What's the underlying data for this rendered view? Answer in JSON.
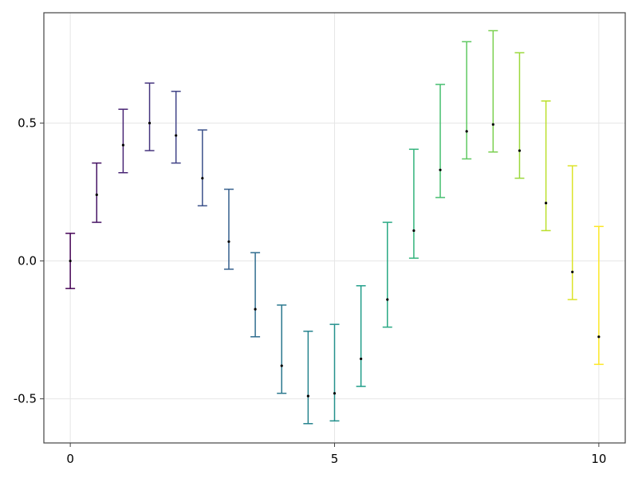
{
  "chart_data": {
    "type": "scatter",
    "title": "",
    "xlabel": "",
    "ylabel": "",
    "xlim": [
      -0.5,
      10.5
    ],
    "ylim": [
      -0.66,
      0.9
    ],
    "grid": true,
    "legend": "none",
    "x_ticks": [
      0,
      5,
      10
    ],
    "x_tick_labels": [
      "0",
      "5",
      "10"
    ],
    "y_ticks": [
      -0.5,
      0.0,
      0.5
    ],
    "y_tick_labels": [
      "-0.5",
      "0.0",
      "0.5"
    ],
    "colormap": "viridis",
    "point_color": "#000000",
    "series": [
      {
        "x": [
          0,
          0.5,
          1,
          1.5,
          2,
          2.5,
          3,
          3.5,
          4,
          4.5,
          5,
          5.5,
          6,
          6.5,
          7,
          7.5,
          8,
          8.5,
          9,
          9.5,
          10
        ],
        "y": [
          0.0,
          0.24,
          0.42,
          0.5,
          0.455,
          0.3,
          0.07,
          -0.175,
          -0.38,
          -0.49,
          -0.48,
          -0.355,
          -0.14,
          0.11,
          0.33,
          0.47,
          0.495,
          0.4,
          0.21,
          -0.04,
          -0.275
        ],
        "error_low": [
          0.1,
          0.1,
          0.1,
          0.1,
          0.1,
          0.1,
          0.1,
          0.1,
          0.1,
          0.1,
          0.1,
          0.1,
          0.1,
          0.1,
          0.1,
          0.1,
          0.1,
          0.1,
          0.1,
          0.1,
          0.1
        ],
        "error_high": [
          0.1,
          0.115,
          0.13,
          0.145,
          0.16,
          0.175,
          0.19,
          0.205,
          0.22,
          0.235,
          0.25,
          0.265,
          0.28,
          0.295,
          0.31,
          0.325,
          0.34,
          0.355,
          0.37,
          0.385,
          0.4
        ]
      }
    ]
  }
}
